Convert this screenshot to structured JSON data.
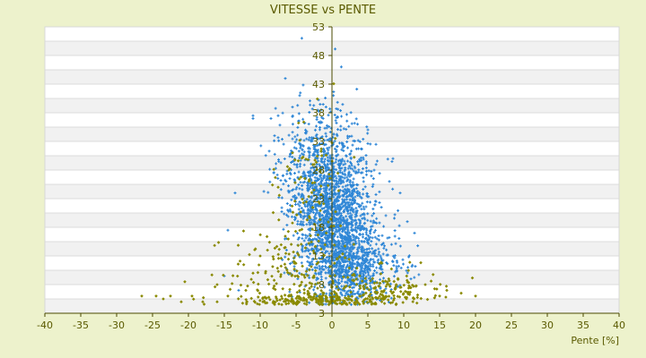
{
  "chart_data": {
    "type": "scatter",
    "title": "VITESSE vs PENTE",
    "xlabel": "Pente [%]",
    "ylabel": "",
    "xlim": [
      -40,
      40
    ],
    "ylim": [
      3,
      53
    ],
    "x_ticks": [
      "-40",
      "-35",
      "-30",
      "-25",
      "-20",
      "-15",
      "-10",
      "-5",
      "0",
      "5",
      "10",
      "15",
      "20",
      "25",
      "30",
      "35",
      "40"
    ],
    "y_ticks": [
      "3",
      "8",
      "13",
      "18",
      "23",
      "28",
      "33",
      "38",
      "43",
      "48",
      "53"
    ],
    "grid": "horizontal alternating bands",
    "legend": "none",
    "series": [
      {
        "color": "#2e86d6",
        "marker": "cross",
        "clusters": [
          {
            "center": [
              0,
              20
            ],
            "spread": [
              2.6,
              6.5
            ],
            "count": 1500
          },
          {
            "center": [
              2.5,
              12
            ],
            "spread": [
              2.5,
              4
            ],
            "count": 500
          },
          {
            "center": [
              -2,
              30
            ],
            "spread": [
              2.8,
              5
            ],
            "count": 350
          },
          {
            "center": [
              5,
              11
            ],
            "spread": [
              3,
              3
            ],
            "count": 200
          }
        ],
        "points": [
          [
            -4.2,
            51
          ],
          [
            1.3,
            46
          ],
          [
            -6.5,
            44
          ],
          [
            -11,
            37.5
          ],
          [
            -11,
            37
          ],
          [
            -8.5,
            37
          ],
          [
            -7.5,
            37.5
          ],
          [
            -5.5,
            39
          ],
          [
            -4.5,
            41
          ],
          [
            0.2,
            41
          ],
          [
            -1.5,
            38.5
          ],
          [
            -8,
            34
          ],
          [
            -13.5,
            24
          ],
          [
            -14.5,
            17.5
          ],
          [
            -15,
            9.5
          ],
          [
            -13,
            7
          ],
          [
            8,
            26
          ],
          [
            9.5,
            24
          ],
          [
            11.5,
            17
          ],
          [
            10.5,
            19
          ],
          [
            11,
            9
          ],
          [
            8.5,
            30
          ]
        ]
      },
      {
        "color": "#8a8a00",
        "marker": "diamond",
        "clusters": [
          {
            "center": [
              -5,
              9
            ],
            "spread": [
              5,
              4
            ],
            "count": 230
          },
          {
            "center": [
              8,
              7
            ],
            "spread": [
              3.5,
              1.8
            ],
            "count": 140
          },
          {
            "center": [
              0,
              5
            ],
            "spread": [
              4.5,
              1.2
            ],
            "count": 160
          },
          {
            "center": [
              -3,
              24
            ],
            "spread": [
              2.2,
              7
            ],
            "count": 90
          }
        ],
        "points": [
          [
            -26.5,
            6
          ],
          [
            -24.5,
            6
          ],
          [
            -23.5,
            5.5
          ],
          [
            -22.5,
            6
          ],
          [
            -21,
            5
          ],
          [
            -20.5,
            8.5
          ],
          [
            -19.5,
            6
          ],
          [
            -18,
            5
          ],
          [
            -16,
            5
          ],
          [
            -16,
            8
          ],
          [
            -14.5,
            6
          ],
          [
            -12,
            7
          ],
          [
            -11,
            10
          ],
          [
            -10,
            13
          ],
          [
            18,
            6.5
          ],
          [
            20,
            6
          ],
          [
            16,
            7
          ],
          [
            15,
            6
          ],
          [
            13,
            8
          ],
          [
            -7.5,
            25
          ],
          [
            -6,
            28
          ],
          [
            -5.5,
            31
          ]
        ]
      }
    ]
  }
}
